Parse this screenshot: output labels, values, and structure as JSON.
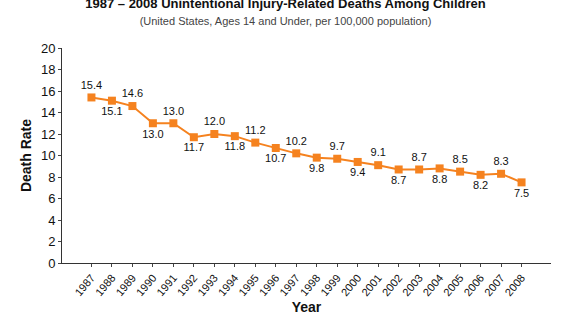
{
  "chart_data": {
    "type": "line",
    "title": "1987 – 2008 Unintentional Injury-Related Deaths Among Children",
    "subtitle": "(United States, Ages 14 and Under, per 100,000 population)",
    "x_label": "Year",
    "y_label": "Death Rate",
    "categories": [
      "1987",
      "1988",
      "1989",
      "1990",
      "1991",
      "1992",
      "1993",
      "1994",
      "1995",
      "1996",
      "1997",
      "1998",
      "1999",
      "2000",
      "2001",
      "2002",
      "2003",
      "2004",
      "2005",
      "2006",
      "2007",
      "2008"
    ],
    "values": [
      15.4,
      15.1,
      14.6,
      13.0,
      13.0,
      11.7,
      12.0,
      11.8,
      11.2,
      10.7,
      10.2,
      9.8,
      9.7,
      9.4,
      9.1,
      8.7,
      8.7,
      8.8,
      8.5,
      8.2,
      8.3,
      7.5
    ],
    "value_labels": [
      "15.4",
      "15.1",
      "14.6",
      "13.0",
      "13.0",
      "11.7",
      "12.0",
      "11.8",
      "11.2",
      "10.7",
      "10.2",
      "9.8",
      "9.7",
      "9.4",
      "9.1",
      "8.7",
      "8.7",
      "8.8",
      "8.5",
      "8.2",
      "8.3",
      "7.5"
    ],
    "color": "#f5821f",
    "marker": "square",
    "line_style": "solid",
    "data_labels": true,
    "ylim": [
      0,
      20
    ],
    "yticks": [
      0,
      2,
      4,
      6,
      8,
      10,
      12,
      14,
      16,
      18,
      20
    ],
    "grid": false
  }
}
